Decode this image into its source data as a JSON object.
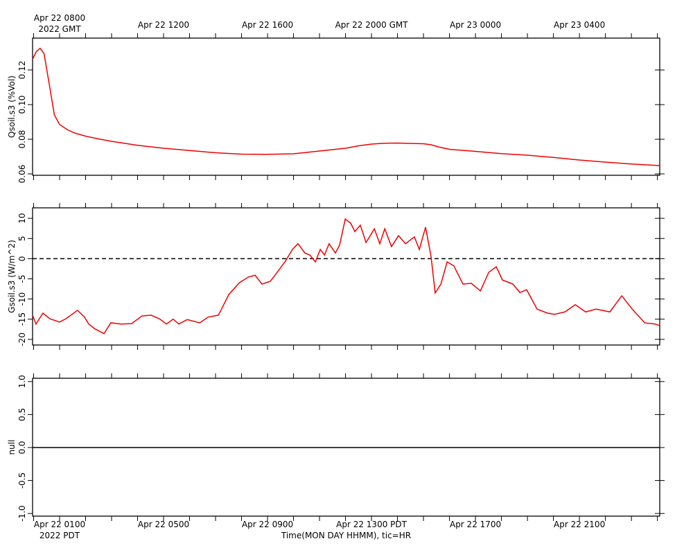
{
  "chart_data": [
    {
      "type": "line",
      "ylabel": "Qsoil.s3 (%Vol)",
      "xlim": [
        -0.04,
        24.09
      ],
      "ylim": [
        0.0592,
        0.1384
      ],
      "yticks": [
        0.06,
        0.08,
        {
          "value": 0.1,
          "label": "0.10"
        },
        0.12
      ],
      "x_minor_ticks": [
        0,
        1,
        2,
        3,
        4,
        5,
        6,
        7,
        8,
        9,
        10,
        11,
        12,
        13,
        14,
        15,
        16,
        17,
        18,
        19,
        20,
        21,
        22,
        23,
        24
      ],
      "x2ticks": [
        {
          "value": 1,
          "label": "Apr 22 0800"
        },
        {
          "value": 5,
          "label": "Apr 22 1200"
        },
        {
          "value": 9,
          "label": "Apr 22 1600"
        },
        {
          "value": 13,
          "label": "Apr 22 2000 GMT"
        },
        {
          "value": 17,
          "label": "Apr 23 0000"
        },
        {
          "value": 21,
          "label": "Apr 23 0400"
        }
      ],
      "x2_sublabel": "2022 GMT",
      "series": [
        {
          "name": "Qsoil.s3",
          "color": "#ee0000",
          "x": [
            -0.04,
            0.1,
            0.25,
            0.4,
            0.6,
            0.8,
            1,
            1.3,
            1.6,
            2,
            2.5,
            3,
            4,
            5,
            6,
            7,
            8,
            9,
            10,
            11,
            12,
            12.5,
            13,
            13.5,
            14,
            14.5,
            15,
            15.3,
            15.6,
            16,
            17,
            18,
            19,
            20,
            21,
            22,
            23,
            24.09
          ],
          "values": [
            0.1262,
            0.1305,
            0.1325,
            0.1295,
            0.112,
            0.094,
            0.0885,
            0.0855,
            0.0835,
            0.0818,
            0.0802,
            0.0788,
            0.0765,
            0.0748,
            0.0735,
            0.0722,
            0.0714,
            0.0713,
            0.0716,
            0.0732,
            0.0748,
            0.0762,
            0.0772,
            0.0777,
            0.0778,
            0.0776,
            0.0774,
            0.0768,
            0.0755,
            0.0742,
            0.073,
            0.0717,
            0.0708,
            0.0695,
            0.068,
            0.0668,
            0.0657,
            0.0648
          ]
        }
      ]
    },
    {
      "type": "line",
      "ylabel": "Gsoil.s3 (W/m^2)",
      "xlim": [
        -0.04,
        24.09
      ],
      "ylim": [
        -21.4,
        12.6
      ],
      "yticks": [
        -20,
        -15,
        -10,
        -5,
        0,
        5,
        10
      ],
      "x_minor_ticks": [
        0,
        1,
        2,
        3,
        4,
        5,
        6,
        7,
        8,
        9,
        10,
        11,
        12,
        13,
        14,
        15,
        16,
        17,
        18,
        19,
        20,
        21,
        22,
        23,
        24
      ],
      "hline": 0,
      "hline_style": "dashed",
      "series": [
        {
          "name": "Gsoil.s3",
          "color": "#ee0000",
          "x": [
            -0.04,
            0.09,
            0.36,
            0.63,
            1,
            1.24,
            1.69,
            1.96,
            2.12,
            2.36,
            2.71,
            2.97,
            3.37,
            3.77,
            4.17,
            4.52,
            4.84,
            5.11,
            5.37,
            5.59,
            5.91,
            6.39,
            6.71,
            7.11,
            7.51,
            7.91,
            8.25,
            8.52,
            8.79,
            9.11,
            9.37,
            9.69,
            9.96,
            10.17,
            10.44,
            10.63,
            10.84,
            11.03,
            11.19,
            11.37,
            11.61,
            11.77,
            11.99,
            12.2,
            12.36,
            12.57,
            12.79,
            13.11,
            13.32,
            13.51,
            13.77,
            14.04,
            14.31,
            14.65,
            14.84,
            15.08,
            15.29,
            15.45,
            15.67,
            15.91,
            16.17,
            16.52,
            16.84,
            17.19,
            17.51,
            17.8,
            18.04,
            18.44,
            18.71,
            18.97,
            19.37,
            19.77,
            20.04,
            20.44,
            20.84,
            21.24,
            21.64,
            22.17,
            22.63,
            23.03,
            23.51,
            23.91,
            24.09
          ],
          "values": [
            -14.0,
            -16.2,
            -13.5,
            -14.9,
            -15.7,
            -14.9,
            -12.8,
            -14.5,
            -16.2,
            -17.4,
            -18.6,
            -15.9,
            -16.2,
            -16.1,
            -14.2,
            -14.0,
            -14.9,
            -16.2,
            -15.0,
            -16.2,
            -15.1,
            -15.9,
            -14.5,
            -14.0,
            -8.9,
            -6.0,
            -4.6,
            -4.1,
            -6.3,
            -5.6,
            -3.4,
            -0.6,
            2.3,
            3.7,
            1.4,
            0.9,
            -0.8,
            2.3,
            0.9,
            3.7,
            1.4,
            3.3,
            9.8,
            8.8,
            6.7,
            8.3,
            4.0,
            7.4,
            3.7,
            7.4,
            3.0,
            5.7,
            3.7,
            5.4,
            2.3,
            7.8,
            0.6,
            -8.5,
            -6.3,
            -0.8,
            -1.8,
            -6.3,
            -6.1,
            -8.0,
            -3.4,
            -2.0,
            -5.3,
            -6.3,
            -8.4,
            -7.7,
            -12.5,
            -13.5,
            -13.8,
            -13.2,
            -11.4,
            -13.2,
            -12.5,
            -13.2,
            -9.2,
            -12.5,
            -15.9,
            -16.2,
            -16.6
          ]
        }
      ]
    },
    {
      "type": "line",
      "ylabel": "null",
      "xlim": [
        -0.04,
        24.09
      ],
      "ylim": [
        -1.04,
        1.05
      ],
      "yticks": [
        {
          "value": -1,
          "label": "-1.0"
        },
        -0.5,
        {
          "value": 0,
          "label": "0.0"
        },
        0.5,
        {
          "value": 1,
          "label": "1.0"
        }
      ],
      "x_minor_ticks": [
        0,
        1,
        2,
        3,
        4,
        5,
        6,
        7,
        8,
        9,
        10,
        11,
        12,
        13,
        14,
        15,
        16,
        17,
        18,
        19,
        20,
        21,
        22,
        23,
        24
      ],
      "hline": 0,
      "hline_style": "solid",
      "xticks": [
        {
          "value": 1,
          "label": "Apr 22 0100"
        },
        {
          "value": 5,
          "label": "Apr 22 0500"
        },
        {
          "value": 9,
          "label": "Apr 22 0900"
        },
        {
          "value": 13,
          "label": "Apr 22 1300 PDT"
        },
        {
          "value": 17,
          "label": "Apr 22 1700"
        },
        {
          "value": 21,
          "label": "Apr 22 2100"
        }
      ],
      "x_sublabel": "2022 PDT",
      "xlabel": "Time(MON DAY HHMM), tic=HR",
      "series": []
    }
  ]
}
